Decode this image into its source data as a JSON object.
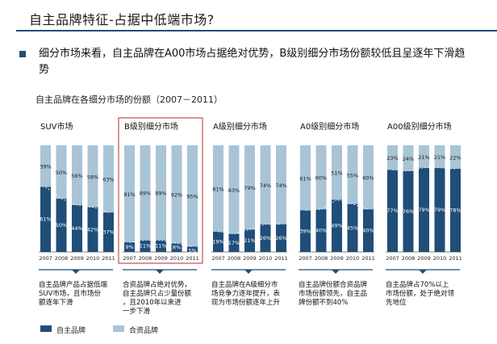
{
  "header": {
    "title": "自主品牌特征-占据中低端市场?"
  },
  "bullet": {
    "text": "细分市场来看，自主品牌在A00市场占据绝对优势，B级别细分市场份额较低且呈逐年下滑趋势"
  },
  "subtitle": "自主品牌在各细分市场的份额（2007－2011）",
  "legend": {
    "domestic": "自主品牌",
    "jv": "合资品牌"
  },
  "colors": {
    "domestic": "#1f4e79",
    "jv": "#a9c4d6",
    "highlight": "#c0504d",
    "accent_line": "#1f4e79"
  },
  "chart_data": [
    {
      "type": "bar",
      "title": "SUV市场",
      "categories": [
        "2007",
        "2008",
        "2009",
        "2010",
        "2011"
      ],
      "series": [
        {
          "name": "自主品牌",
          "values": [
            61,
            50,
            44,
            42,
            37
          ],
          "labels": [
            "61%",
            "50%",
            "44%",
            "42%",
            "37%"
          ]
        },
        {
          "name": "合资品牌",
          "values": [
            39,
            50,
            56,
            58,
            63
          ],
          "labels": [
            "39%",
            "50%",
            "56%",
            "58%",
            "63%"
          ]
        }
      ],
      "ylim": [
        0,
        100
      ],
      "note": "自主品牌产品占据低端SUV市场，且市场份额逐年下滑"
    },
    {
      "type": "bar",
      "title": "B级别细分市场",
      "highlighted": true,
      "categories": [
        "2007",
        "2008",
        "2009",
        "2010",
        "2011"
      ],
      "series": [
        {
          "name": "自主品牌",
          "values": [
            9,
            11,
            11,
            8,
            5
          ],
          "labels": [
            "9%",
            "11%",
            "11%",
            "8%",
            "5%"
          ]
        },
        {
          "name": "合资品牌",
          "values": [
            91,
            89,
            89,
            92,
            95
          ],
          "labels": [
            "91%",
            "89%",
            "89%",
            "92%",
            "95%"
          ]
        }
      ],
      "ylim": [
        0,
        100
      ],
      "note": "合资品牌占绝对优势，自主品牌只占少量份额，且2010年以来进一步下滑"
    },
    {
      "type": "bar",
      "title": "A级别细分市场",
      "categories": [
        "2007",
        "2008",
        "2009",
        "2010",
        "2011"
      ],
      "series": [
        {
          "name": "自主品牌",
          "values": [
            19,
            17,
            21,
            26,
            26
          ],
          "labels": [
            "19%",
            "17%",
            "21%",
            "26%",
            "26%"
          ]
        },
        {
          "name": "合资品牌",
          "values": [
            81,
            83,
            79,
            74,
            74
          ],
          "labels": [
            "81%",
            "83%",
            "79%",
            "74%",
            "74%"
          ]
        }
      ],
      "ylim": [
        0,
        100
      ],
      "note": "自主品牌在A级细分市场竞争力逐年提升，表现为市场份额逐年上升"
    },
    {
      "type": "bar",
      "title": "A0级别细分市场",
      "categories": [
        "2007",
        "2008",
        "2009",
        "2010",
        "2011"
      ],
      "series": [
        {
          "name": "自主品牌",
          "values": [
            39,
            40,
            49,
            45,
            40
          ],
          "labels": [
            "39%",
            "40%",
            "49%",
            "45%",
            "40%"
          ]
        },
        {
          "name": "合资品牌",
          "values": [
            61,
            60,
            51,
            55,
            60
          ],
          "labels": [
            "61%",
            "60%",
            "51%",
            "55%",
            "60%"
          ]
        }
      ],
      "ylim": [
        0,
        100
      ],
      "note": "自主品牌份额合资品牌市场份额领先，自主品牌份额不到40%"
    },
    {
      "type": "bar",
      "title": "A00级别细分市场",
      "categories": [
        "2007",
        "2008",
        "2009",
        "2010",
        "2011"
      ],
      "series": [
        {
          "name": "自主品牌",
          "values": [
            77,
            76,
            79,
            79,
            78
          ],
          "labels": [
            "77%",
            "76%",
            "79%",
            "79%",
            "78%"
          ]
        },
        {
          "name": "合资品牌",
          "values": [
            23,
            24,
            21,
            21,
            22
          ],
          "labels": [
            "23%",
            "24%",
            "21%",
            "21%",
            "22%"
          ]
        }
      ],
      "ylim": [
        0,
        100
      ],
      "note": "自主品牌占70%以上市场份额，处于绝对领先地位"
    }
  ]
}
